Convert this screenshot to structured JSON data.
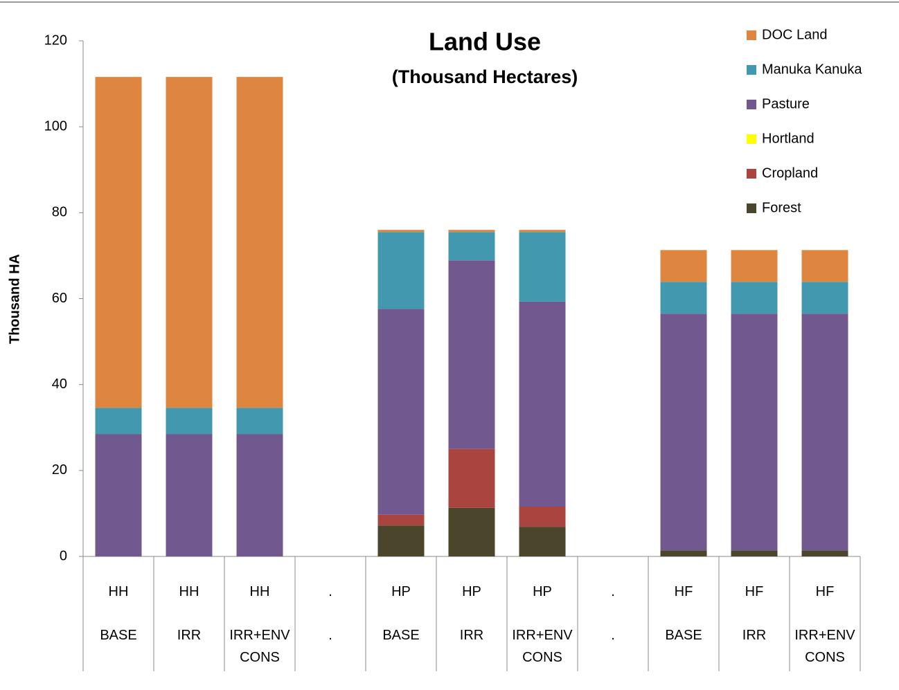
{
  "chart_data": {
    "type": "stacked_bar",
    "title": "Land Use",
    "subtitle": "(Thousand Hectares)",
    "y_label": "Thousand HA",
    "categories": [
      [
        "HH",
        "BASE"
      ],
      [
        "HH",
        "IRR"
      ],
      [
        "HH",
        "IRR+ENV CONS"
      ],
      [
        ".",
        "."
      ],
      [
        "HP",
        "BASE"
      ],
      [
        "HP",
        "IRR"
      ],
      [
        "HP",
        "IRR+ENV CONS"
      ],
      [
        ".",
        "."
      ],
      [
        "HF",
        "BASE"
      ],
      [
        "HF",
        "IRR"
      ],
      [
        "HF",
        "IRR+ENV CONS"
      ]
    ],
    "series": [
      {
        "name": "Forest",
        "color": "#4a452b",
        "values": [
          0,
          0,
          0,
          null,
          7.2,
          11.3,
          6.9,
          null,
          1.4,
          1.4,
          1.4
        ]
      },
      {
        "name": "Cropland",
        "color": "#a9443f",
        "values": [
          0,
          0,
          0,
          null,
          2.5,
          13.7,
          4.7,
          null,
          0,
          0,
          0
        ]
      },
      {
        "name": "Hortland",
        "color": "#ffff00",
        "values": [
          0,
          0,
          0,
          null,
          0,
          0,
          0,
          null,
          0,
          0,
          0
        ]
      },
      {
        "name": "Pasture",
        "color": "#71588f",
        "values": [
          28.5,
          28.5,
          28.5,
          null,
          47.9,
          43.9,
          47.7,
          null,
          55.1,
          55.1,
          55.1
        ]
      },
      {
        "name": "Manuka Kanuka",
        "color": "#4198af",
        "values": [
          6.1,
          6.1,
          6.1,
          null,
          17.9,
          6.6,
          16.2,
          null,
          7.4,
          7.4,
          7.4
        ]
      },
      {
        "name": "DOC Land",
        "color": "#de853f",
        "values": [
          77,
          77,
          77,
          null,
          0.5,
          0.5,
          0.5,
          null,
          7.4,
          7.4,
          7.4
        ]
      }
    ],
    "ylim": [
      0,
      120
    ],
    "yticks": [
      0,
      20,
      40,
      60,
      80,
      100,
      120
    ],
    "legend": "top-right"
  }
}
